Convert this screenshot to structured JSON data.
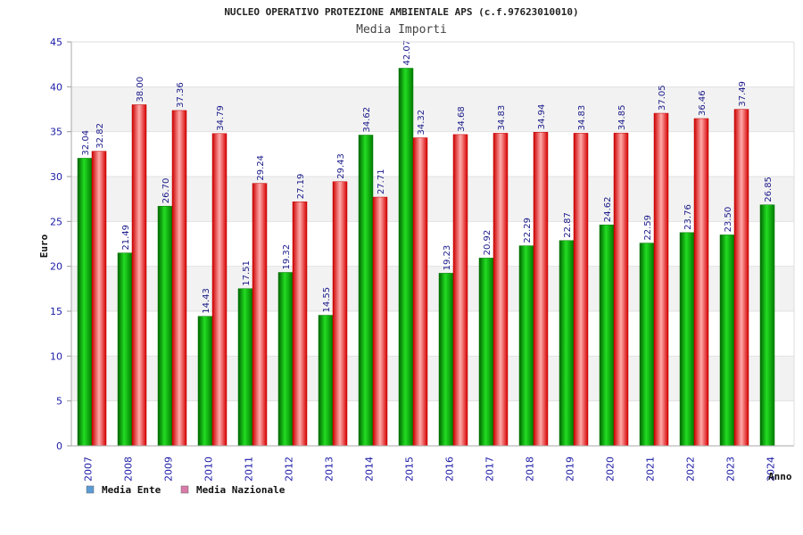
{
  "chart_data": {
    "type": "bar",
    "title": "NUCLEO OPERATIVO PROTEZIONE AMBIENTALE APS (c.f.97623010010)",
    "subtitle": "Media Importi",
    "ylabel": "Euro",
    "xlabel": "Anno",
    "ylim": [
      0,
      45
    ],
    "yticks": [
      0,
      5,
      10,
      15,
      20,
      25,
      30,
      35,
      40,
      45
    ],
    "categories": [
      "2007",
      "2008",
      "2009",
      "2010",
      "2011",
      "2012",
      "2013",
      "2014",
      "2015",
      "2016",
      "2017",
      "2018",
      "2019",
      "2020",
      "2021",
      "2022",
      "2023",
      "2024"
    ],
    "series": [
      {
        "name": "Media Ente",
        "values": [
          32.04,
          21.49,
          26.7,
          14.43,
          17.51,
          19.32,
          14.55,
          34.62,
          42.07,
          19.23,
          20.92,
          22.29,
          22.87,
          24.62,
          22.59,
          23.76,
          23.5,
          26.85
        ],
        "labels": [
          "32.04",
          "21.49",
          "26.70",
          "14.43",
          "17.51",
          "19.32",
          "14.55",
          "34.62",
          "42.07",
          "19.23",
          "20.92",
          "22.29",
          "22.87",
          "24.62",
          "22.59",
          "23.76",
          "23.50",
          "26.85"
        ],
        "color": "#00b400",
        "legend_color": "#5b9bd5"
      },
      {
        "name": "Media Nazionale",
        "values": [
          32.82,
          38.0,
          37.36,
          34.79,
          29.24,
          27.19,
          29.43,
          27.71,
          34.32,
          34.68,
          34.83,
          34.94,
          34.83,
          34.85,
          37.05,
          36.46,
          37.49,
          null
        ],
        "labels": [
          "32.82",
          "38.00",
          "37.36",
          "34.79",
          "29.24",
          "27.19",
          "29.43",
          "27.71",
          "34.32",
          "34.68",
          "34.83",
          "34.94",
          "34.83",
          "34.85",
          "37.05",
          "36.46",
          "37.49",
          ""
        ],
        "color": "#e60000",
        "legend_color": "#d97ba8"
      }
    ],
    "grid": true,
    "legend": "bottom-left"
  }
}
